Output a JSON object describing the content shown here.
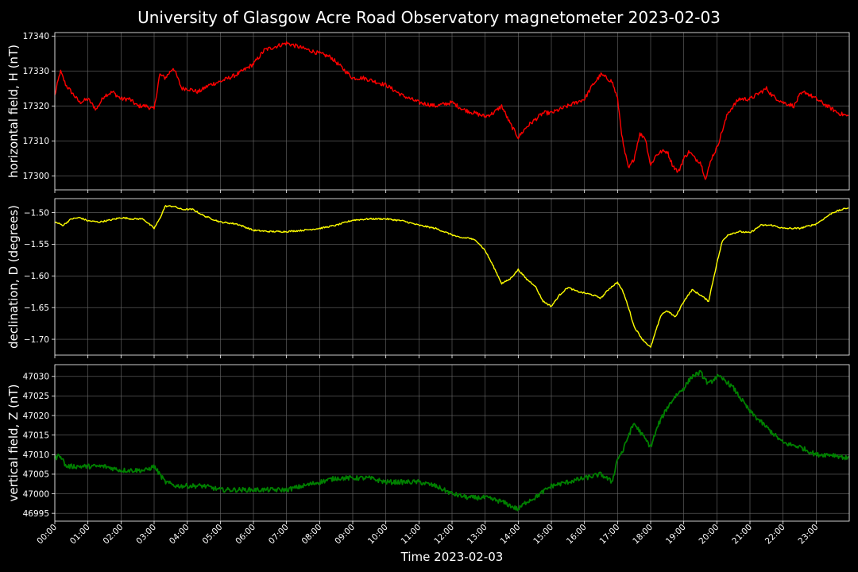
{
  "chart_data": {
    "type": "line",
    "title": "University of Glasgow Acre Road Observatory magnetometer 2023-02-03",
    "xlabel": "Time 2023-02-03",
    "x_tick_labels": [
      "00:00",
      "01:00",
      "02:00",
      "03:00",
      "04:00",
      "05:00",
      "06:00",
      "07:00",
      "08:00",
      "09:00",
      "10:00",
      "11:00",
      "12:00",
      "13:00",
      "14:00",
      "15:00",
      "16:00",
      "17:00",
      "18:00",
      "19:00",
      "20:00",
      "21:00",
      "22:00",
      "23:00"
    ],
    "xlim": [
      "00:00",
      "24:00"
    ],
    "grid": true,
    "panels": [
      {
        "ylabel": "horizontal field, H (nT)",
        "color": "#ff0000",
        "ylim": [
          17296,
          17341
        ],
        "y_ticks": [
          17300,
          17310,
          17320,
          17330,
          17340
        ],
        "y_tick_labels": [
          "17300",
          "17310",
          "17320",
          "17330",
          "17340"
        ],
        "noise": 0.6,
        "x": [
          "00:00",
          "00:10",
          "00:20",
          "00:30",
          "00:45",
          "01:00",
          "01:15",
          "01:30",
          "01:45",
          "02:00",
          "02:15",
          "02:30",
          "02:45",
          "03:00",
          "03:10",
          "03:20",
          "03:35",
          "03:50",
          "04:00",
          "04:20",
          "04:40",
          "05:00",
          "05:30",
          "06:00",
          "06:20",
          "06:40",
          "07:00",
          "07:20",
          "07:40",
          "08:00",
          "08:20",
          "08:40",
          "09:00",
          "09:20",
          "09:40",
          "10:00",
          "10:30",
          "11:00",
          "11:30",
          "12:00",
          "12:20",
          "12:40",
          "13:00",
          "13:15",
          "13:30",
          "13:45",
          "14:00",
          "14:15",
          "14:30",
          "14:45",
          "15:00",
          "15:15",
          "15:30",
          "15:45",
          "16:00",
          "16:15",
          "16:30",
          "16:40",
          "16:50",
          "17:00",
          "17:10",
          "17:20",
          "17:30",
          "17:40",
          "17:50",
          "18:00",
          "18:10",
          "18:20",
          "18:30",
          "18:40",
          "18:50",
          "19:00",
          "19:10",
          "19:20",
          "19:30",
          "19:40",
          "19:50",
          "20:00",
          "20:10",
          "20:20",
          "20:40",
          "21:00",
          "21:20",
          "21:30",
          "21:40",
          "22:00",
          "22:20",
          "22:30",
          "22:40",
          "23:00",
          "23:20",
          "23:40",
          "23:59"
        ],
        "values": [
          17323,
          17330,
          17326,
          17324,
          17321,
          17322,
          17319,
          17323,
          17324,
          17322,
          17322,
          17320,
          17320,
          17319,
          17329,
          17328,
          17331,
          17325,
          17325,
          17324,
          17326,
          17327,
          17329,
          17332,
          17336,
          17337,
          17338,
          17337,
          17336,
          17335,
          17334,
          17331,
          17328,
          17328,
          17327,
          17326,
          17323,
          17321,
          17320,
          17321,
          17319,
          17318,
          17317,
          17318,
          17320,
          17315,
          17311,
          17314,
          17316,
          17318,
          17318,
          17319,
          17320,
          17321,
          17322,
          17326,
          17329,
          17328,
          17327,
          17322,
          17309,
          17302,
          17305,
          17312,
          17311,
          17303,
          17306,
          17307,
          17307,
          17303,
          17301,
          17305,
          17307,
          17305,
          17304,
          17299,
          17305,
          17308,
          17313,
          17318,
          17322,
          17322,
          17324,
          17325,
          17323,
          17321,
          17320,
          17323,
          17324,
          17322,
          17320,
          17318,
          17317
        ]
      },
      {
        "ylabel": "declination, D (degrees)",
        "color": "#ffff00",
        "ylim": [
          -1.725,
          -1.478
        ],
        "y_ticks": [
          -1.5,
          -1.55,
          -1.6,
          -1.65,
          -1.7
        ],
        "y_tick_labels": [
          "−1.50",
          "−1.55",
          "−1.60",
          "−1.65",
          "−1.70"
        ],
        "noise": 0.0012,
        "x": [
          "00:00",
          "00:15",
          "00:30",
          "00:45",
          "01:00",
          "01:20",
          "01:40",
          "02:00",
          "02:20",
          "02:40",
          "03:00",
          "03:10",
          "03:20",
          "03:35",
          "03:50",
          "04:10",
          "04:30",
          "05:00",
          "05:30",
          "06:00",
          "06:30",
          "07:00",
          "07:30",
          "08:00",
          "08:30",
          "09:00",
          "09:30",
          "10:00",
          "10:30",
          "11:00",
          "11:30",
          "12:00",
          "12:15",
          "12:30",
          "12:45",
          "13:00",
          "13:15",
          "13:30",
          "13:45",
          "14:00",
          "14:15",
          "14:30",
          "14:45",
          "15:00",
          "15:15",
          "15:30",
          "15:45",
          "16:00",
          "16:15",
          "16:30",
          "16:45",
          "17:00",
          "17:10",
          "17:20",
          "17:30",
          "17:45",
          "18:00",
          "18:10",
          "18:20",
          "18:30",
          "18:45",
          "19:00",
          "19:15",
          "19:30",
          "19:45",
          "20:00",
          "20:10",
          "20:20",
          "20:40",
          "21:00",
          "21:20",
          "21:40",
          "22:00",
          "22:30",
          "23:00",
          "23:30",
          "23:59"
        ],
        "values": [
          -1.515,
          -1.52,
          -1.51,
          -1.508,
          -1.513,
          -1.515,
          -1.512,
          -1.508,
          -1.51,
          -1.51,
          -1.525,
          -1.51,
          -1.49,
          -1.49,
          -1.495,
          -1.495,
          -1.505,
          -1.515,
          -1.518,
          -1.528,
          -1.53,
          -1.53,
          -1.528,
          -1.525,
          -1.52,
          -1.512,
          -1.51,
          -1.51,
          -1.513,
          -1.52,
          -1.525,
          -1.535,
          -1.54,
          -1.54,
          -1.545,
          -1.56,
          -1.585,
          -1.612,
          -1.605,
          -1.59,
          -1.605,
          -1.615,
          -1.64,
          -1.648,
          -1.63,
          -1.618,
          -1.624,
          -1.627,
          -1.63,
          -1.635,
          -1.62,
          -1.61,
          -1.625,
          -1.65,
          -1.68,
          -1.7,
          -1.713,
          -1.685,
          -1.66,
          -1.655,
          -1.665,
          -1.64,
          -1.622,
          -1.63,
          -1.64,
          -1.58,
          -1.545,
          -1.535,
          -1.53,
          -1.532,
          -1.52,
          -1.52,
          -1.525,
          -1.525,
          -1.518,
          -1.5,
          -1.492
        ]
      },
      {
        "ylabel": "vertical field, Z (nT)",
        "color": "#008000",
        "ylim": [
          46993,
          47033
        ],
        "y_ticks": [
          46995,
          47000,
          47005,
          47010,
          47015,
          47020,
          47025,
          47030
        ],
        "y_tick_labels": [
          "46995",
          "47000",
          "47005",
          "47010",
          "47015",
          "47020",
          "47025",
          "47030"
        ],
        "noise": 0.6,
        "x": [
          "00:00",
          "00:10",
          "00:20",
          "00:30",
          "01:00",
          "01:30",
          "02:00",
          "02:30",
          "02:45",
          "03:00",
          "03:10",
          "03:20",
          "03:40",
          "04:00",
          "04:30",
          "05:00",
          "05:30",
          "06:00",
          "06:30",
          "07:00",
          "07:30",
          "08:00",
          "08:30",
          "09:00",
          "09:30",
          "10:00",
          "10:30",
          "11:00",
          "11:30",
          "12:00",
          "12:30",
          "13:00",
          "13:30",
          "14:00",
          "14:15",
          "14:30",
          "15:00",
          "15:30",
          "16:00",
          "16:30",
          "16:50",
          "17:00",
          "17:10",
          "17:20",
          "17:30",
          "17:45",
          "18:00",
          "18:15",
          "18:30",
          "18:45",
          "19:00",
          "19:15",
          "19:30",
          "19:45",
          "20:00",
          "20:15",
          "20:30",
          "21:00",
          "21:30",
          "22:00",
          "22:30",
          "23:00",
          "23:30",
          "23:59"
        ],
        "values": [
          47009,
          47010,
          47007,
          47007,
          47007,
          47007,
          47006,
          47006,
          47006,
          47007,
          47005,
          47003,
          47002,
          47002,
          47002,
          47001,
          47001,
          47001,
          47001,
          47001,
          47002,
          47003,
          47004,
          47004,
          47004,
          47003,
          47003,
          47003,
          47002,
          47000,
          46999,
          46999,
          46998,
          46996,
          46998,
          46999,
          47002,
          47003,
          47004,
          47005,
          47003,
          47009,
          47011,
          47015,
          47018,
          47015,
          47012,
          47018,
          47022,
          47025,
          47027,
          47030,
          47031,
          47028,
          47030,
          47029,
          47027,
          47021,
          47017,
          47013,
          47012,
          47010,
          47010,
          47009
        ]
      }
    ]
  }
}
